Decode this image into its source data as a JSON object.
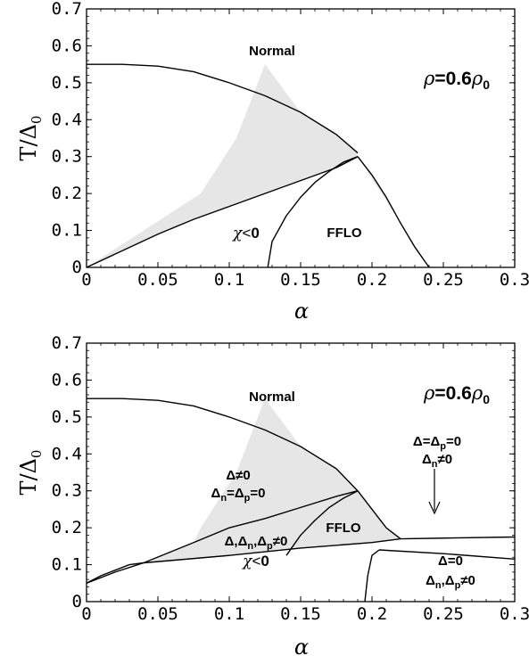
{
  "chart_data": [
    {
      "type": "line",
      "panel": "top",
      "xlabel": "α",
      "ylabel": "T/Δ0",
      "xlim": [
        0,
        0.3
      ],
      "ylim": [
        0,
        0.7
      ],
      "xticks": [
        0,
        0.05,
        0.1,
        0.15,
        0.2,
        0.25,
        0.3
      ],
      "xtick_labels": [
        "0",
        "0.05",
        "0.1",
        "0.15",
        "0.2",
        "0.25",
        "0.3"
      ],
      "yticks": [
        0,
        0.1,
        0.2,
        0.3,
        0.4,
        0.5,
        0.6,
        0.7
      ],
      "ytick_labels": [
        "0",
        "0.1",
        "0.2",
        "0.3",
        "0.4",
        "0.5",
        "0.6",
        "0.7"
      ],
      "fill_color": "#e6e6e6",
      "series": [
        {
          "x": [
            0,
            0.025,
            0.05,
            0.075,
            0.1,
            0.125,
            0.15,
            0.175,
            0.19
          ],
          "y": [
            0.55,
            0.55,
            0.545,
            0.53,
            0.5,
            0.465,
            0.42,
            0.36,
            0.31
          ]
        },
        {
          "x": [
            0.19,
            0.2,
            0.21,
            0.22,
            0.23,
            0.24
          ],
          "y": [
            0.3,
            0.25,
            0.19,
            0.12,
            0.055,
            0
          ]
        },
        {
          "x": [
            0,
            0.025,
            0.05,
            0.075,
            0.1,
            0.125,
            0.15,
            0.175,
            0.19
          ],
          "y": [
            0,
            0.045,
            0.09,
            0.13,
            0.165,
            0.2,
            0.235,
            0.27,
            0.3
          ]
        },
        {
          "x": [
            0.127,
            0.13,
            0.14,
            0.15,
            0.16,
            0.17,
            0.18,
            0.19
          ],
          "y": [
            0,
            0.07,
            0.14,
            0.19,
            0.23,
            0.26,
            0.285,
            0.3
          ]
        }
      ],
      "shaded_boundary": {
        "x": [
          0.125,
          0.115,
          0.105,
          0.08
        ],
        "y": [
          0.55,
          0.45,
          0.35,
          0.2
        ]
      },
      "annotations": [
        {
          "text": "Normal",
          "x": 0.13,
          "y": 0.625
        },
        {
          "text": "ρ=0.6ρ0",
          "x": 0.255,
          "y": 0.525
        },
        {
          "text": "χ<0",
          "x": 0.112,
          "y": 0.08
        },
        {
          "text": "FFLO",
          "x": 0.16,
          "y": 0.08
        }
      ]
    },
    {
      "type": "line",
      "panel": "bottom",
      "xlabel": "α",
      "ylabel": "T/Δ0",
      "xlim": [
        0,
        0.3
      ],
      "ylim": [
        0,
        0.7
      ],
      "xticks": [
        0,
        0.05,
        0.1,
        0.15,
        0.2,
        0.25,
        0.3
      ],
      "xtick_labels": [
        "0",
        "0.05",
        "0.1",
        "0.15",
        "0.2",
        "0.25",
        "0.3"
      ],
      "yticks": [
        0,
        0.1,
        0.2,
        0.3,
        0.4,
        0.5,
        0.6,
        0.7
      ],
      "ytick_labels": [
        "0",
        "0.1",
        "0.2",
        "0.3",
        "0.4",
        "0.5",
        "0.6",
        "0.7"
      ],
      "fill_color": "#e6e6e6",
      "series": [
        {
          "x": [
            0,
            0.025,
            0.05,
            0.075,
            0.1,
            0.125,
            0.15,
            0.175,
            0.19
          ],
          "y": [
            0.55,
            0.55,
            0.545,
            0.53,
            0.5,
            0.465,
            0.42,
            0.36,
            0.3
          ]
        },
        {
          "x": [
            0.19,
            0.2,
            0.21,
            0.22
          ],
          "y": [
            0.3,
            0.25,
            0.2,
            0.17
          ]
        },
        {
          "x": [
            0,
            0.01,
            0.02,
            0.03,
            0.04
          ],
          "y": [
            0.05,
            0.07,
            0.085,
            0.1,
            0.105
          ]
        },
        {
          "x": [
            0.04,
            0.075,
            0.1,
            0.125,
            0.15,
            0.175,
            0.19
          ],
          "y": [
            0.105,
            0.16,
            0.2,
            0.225,
            0.255,
            0.285,
            0.3
          ]
        },
        {
          "x": [
            0.14,
            0.15,
            0.16,
            0.17,
            0.18,
            0.19
          ],
          "y": [
            0.125,
            0.18,
            0.22,
            0.255,
            0.28,
            0.3
          ]
        },
        {
          "x": [
            0.04,
            0.1,
            0.15,
            0.2,
            0.22
          ],
          "y": [
            0.105,
            0.125,
            0.145,
            0.16,
            0.17
          ]
        },
        {
          "x": [
            0.22,
            0.25,
            0.3
          ],
          "y": [
            0.17,
            0.172,
            0.175
          ]
        },
        {
          "x": [
            0,
            0.02,
            0.04
          ],
          "y": [
            0.05,
            0.08,
            0.105
          ]
        },
        {
          "x": [
            0.195,
            0.197,
            0.2,
            0.205
          ],
          "y": [
            0,
            0.07,
            0.125,
            0.14
          ]
        },
        {
          "x": [
            0.205,
            0.25,
            0.3
          ],
          "y": [
            0.14,
            0.13,
            0.115
          ]
        }
      ],
      "shaded_boundary": {
        "x": [
          0.125,
          0.115,
          0.105,
          0.08
        ],
        "y": [
          0.55,
          0.45,
          0.35,
          0.2
        ]
      },
      "annotations": [
        {
          "text": "Normal",
          "x": 0.13,
          "y": 0.62
        },
        {
          "text": "ρ=0.6ρ0",
          "x": 0.255,
          "y": 0.62
        },
        {
          "text": "Δ≠0",
          "x": 0.105,
          "y": 0.37
        },
        {
          "text": "Δn=Δp=0",
          "x": 0.105,
          "y": 0.325
        },
        {
          "text": "Δ=Δp=0",
          "x": 0.25,
          "y": 0.32
        },
        {
          "text": "Δn≠0",
          "x": 0.25,
          "y": 0.28
        },
        {
          "text": "χ<0",
          "x": 0.118,
          "y": 0.175
        },
        {
          "text": "FFLO",
          "x": 0.178,
          "y": 0.2
        },
        {
          "text": "Δ,Δn,Δp≠0",
          "x": 0.12,
          "y": 0.11
        },
        {
          "text": "χ<0",
          "x": 0.12,
          "y": 0.065
        },
        {
          "text": "Δ=0",
          "x": 0.26,
          "y": 0.09
        },
        {
          "text": "Δn,Δp≠0",
          "x": 0.26,
          "y": 0.045
        }
      ]
    }
  ]
}
